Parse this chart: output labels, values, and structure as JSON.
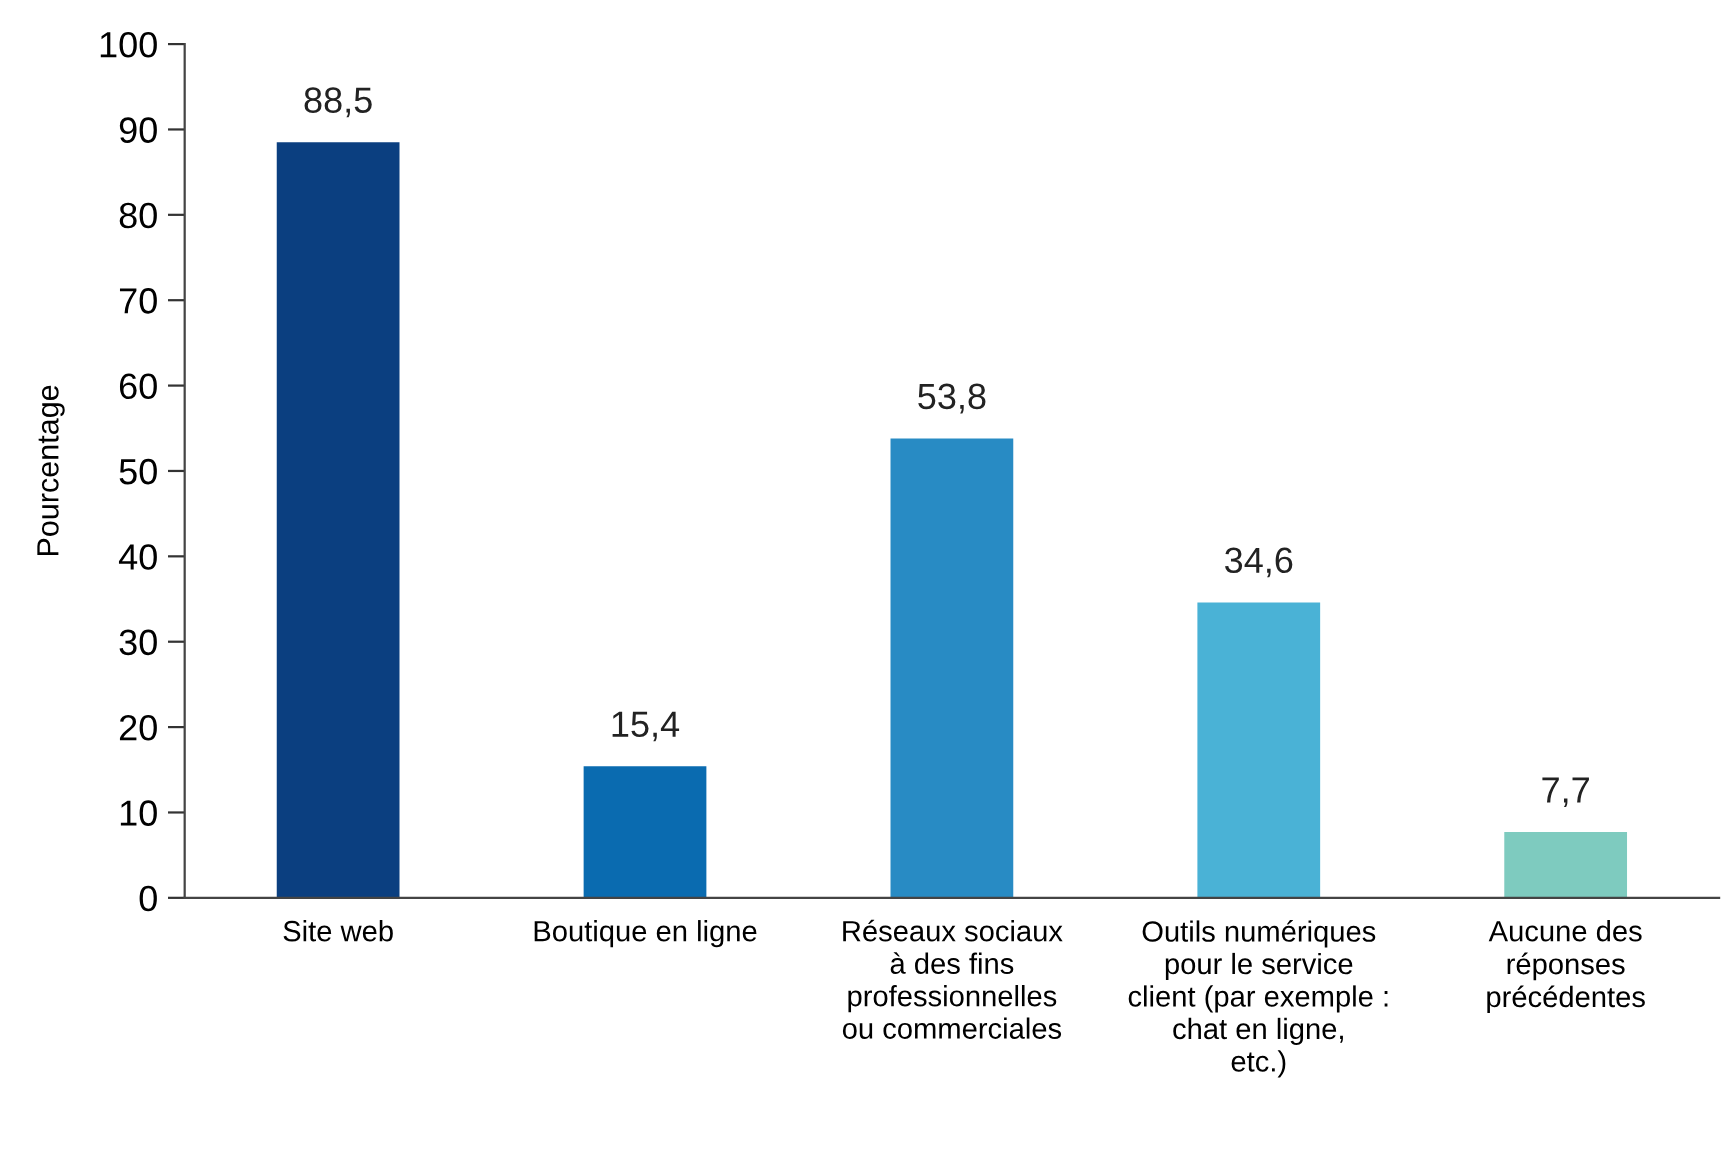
{
  "chart_data": {
    "type": "bar",
    "ylabel": "Pourcentage",
    "categories": [
      "Site web",
      "Boutique en ligne",
      "Réseaux sociaux\nà des fins\nprofessionnelles\nou commerciales",
      "Outils numériques\npour le service\nclient (par exemple :\nchat en ligne,\netc.)",
      "Aucune des\nréponses\nprécédentes"
    ],
    "values": [
      88.5,
      15.4,
      53.8,
      34.6,
      7.7
    ],
    "colors": [
      "#0b3f80",
      "#0a6bb0",
      "#288bc4",
      "#4ab2d6",
      "#7ecbbf"
    ],
    "value_labels": [
      "88,5",
      "15,4",
      "53,8",
      "34,6",
      "7,7"
    ],
    "ylim": [
      0,
      100
    ],
    "yticks": [
      0,
      10,
      20,
      30,
      40,
      50,
      60,
      70,
      80,
      90,
      100
    ]
  }
}
